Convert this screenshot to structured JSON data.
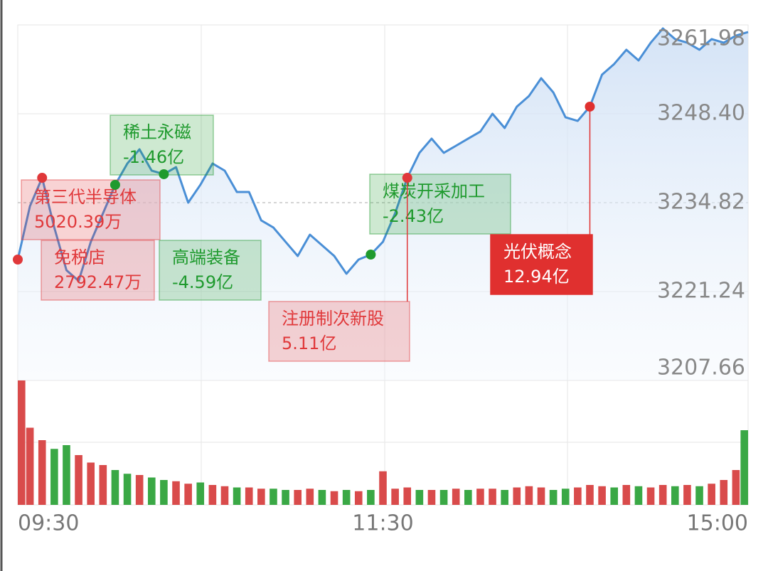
{
  "chart_data": {
    "type": "line",
    "categories": [
      "09:30",
      null,
      null,
      null,
      null,
      null,
      null,
      null,
      null,
      null,
      null,
      null,
      null,
      null,
      null,
      null,
      null,
      null,
      null,
      null,
      null,
      null,
      null,
      null,
      null,
      null,
      null,
      null,
      null,
      null,
      "11:30",
      null,
      null,
      null,
      null,
      null,
      null,
      null,
      null,
      null,
      null,
      null,
      null,
      null,
      null,
      null,
      null,
      null,
      null,
      null,
      null,
      null,
      null,
      null,
      null,
      null,
      null,
      null,
      null,
      null,
      "15:00"
    ],
    "values": [
      3226.13,
      3234.28,
      3238.62,
      3231.02,
      3224.5,
      3222.87,
      3228.84,
      3233.19,
      3237.54,
      3240.8,
      3242.97,
      3239.71,
      3239.17,
      3240.25,
      3234.82,
      3237.54,
      3240.8,
      3239.71,
      3236.45,
      3236.45,
      3232.11,
      3231.02,
      3228.84,
      3226.67,
      3229.93,
      3228.3,
      3226.67,
      3223.96,
      3226.13,
      3226.89,
      3228.84,
      3233.19,
      3238.62,
      3242.43,
      3244.6,
      3242.43,
      3243.51,
      3244.6,
      3245.68,
      3248.4,
      3246.23,
      3249.49,
      3251.12,
      3253.83,
      3251.66,
      3247.86,
      3247.31,
      3249.49,
      3254.38,
      3256.01,
      3258.18,
      3256.55,
      3259.26,
      3261.44,
      3259.81,
      3259.26,
      3258.18,
      3259.81,
      3259.26,
      3260.35,
      3260.89
    ],
    "color": "#4a8fd6",
    "ylim": [
      3207.66,
      3261.98
    ],
    "yticks": [
      3261.98,
      {
        "value": 3248.4,
        "label": "3248.40"
      },
      3234.82,
      3221.24,
      3207.66
    ],
    "dashed_tick_index": 2,
    "grid": true,
    "volume": {
      "ylim": [
        0,
        100
      ],
      "values": [
        100,
        62,
        52,
        45,
        48,
        40,
        34,
        32,
        28,
        25,
        24,
        22,
        20,
        19,
        17,
        18,
        16,
        15,
        14,
        14,
        13,
        13,
        12,
        12,
        13,
        12,
        11,
        12,
        11,
        12,
        27,
        13,
        14,
        12,
        12,
        12,
        13,
        12,
        13,
        13,
        12,
        14,
        15,
        14,
        12,
        13,
        14,
        16,
        15,
        14,
        16,
        15,
        14,
        16,
        15,
        16,
        15,
        17,
        20,
        28,
        60
      ],
      "colors": [
        "#d94b4b",
        "#d94b4b",
        "#d94b4b",
        "#3aa845",
        "#3aa845",
        "#d94b4b",
        "#d94b4b",
        "#d94b4b",
        "#3aa845",
        "#3aa845",
        "#d94b4b",
        "#3aa845",
        "#3aa845",
        "#d94b4b",
        "#d94b4b",
        "#3aa845",
        "#d94b4b",
        "#d94b4b",
        "#3aa845",
        "#d94b4b",
        "#d94b4b",
        "#3aa845",
        "#3aa845",
        "#d94b4b",
        "#d94b4b",
        "#3aa845",
        "#d94b4b",
        "#3aa845",
        "#d94b4b",
        "#3aa845",
        "#d94b4b",
        "#d94b4b",
        "#d94b4b",
        "#3aa845",
        "#d94b4b",
        "#3aa845",
        "#d94b4b",
        "#3aa845",
        "#d94b4b",
        "#d94b4b",
        "#3aa845",
        "#d94b4b",
        "#d94b4b",
        "#d94b4b",
        "#3aa845",
        "#3aa845",
        "#d94b4b",
        "#d94b4b",
        "#d94b4b",
        "#3aa845",
        "#d94b4b",
        "#3aa845",
        "#d94b4b",
        "#d94b4b",
        "#3aa845",
        "#d94b4b",
        "#3aa845",
        "#d94b4b",
        "#d94b4b",
        "#d94b4b",
        "#3aa845"
      ]
    },
    "annotations": [
      {
        "label": "第三代半导体",
        "amount": "5020.39万",
        "index": 2,
        "color": "#e0383a",
        "filled": false
      },
      {
        "label": "免税店",
        "amount": "2792.47万",
        "index": 0,
        "color": "#e0383a",
        "filled": false
      },
      {
        "label": "稀土永磁",
        "amount": "-1.46亿",
        "index": 12,
        "color": "#1f9a2e",
        "filled": false
      },
      {
        "label": "高端装备",
        "amount": "-4.59亿",
        "index": 8,
        "color": "#1f9a2e",
        "filled": false
      },
      {
        "label": "煤炭开采加工",
        "amount": "-2.43亿",
        "index": 29,
        "color": "#1f9a2e",
        "filled": false
      },
      {
        "label": "注册制次新股",
        "amount": "5.11亿",
        "index": 32,
        "color": "#e0383a",
        "filled": false
      },
      {
        "label": "光伏概念",
        "amount": "12.94亿",
        "index": 47,
        "color": "#e0302f",
        "filled": true
      }
    ]
  }
}
